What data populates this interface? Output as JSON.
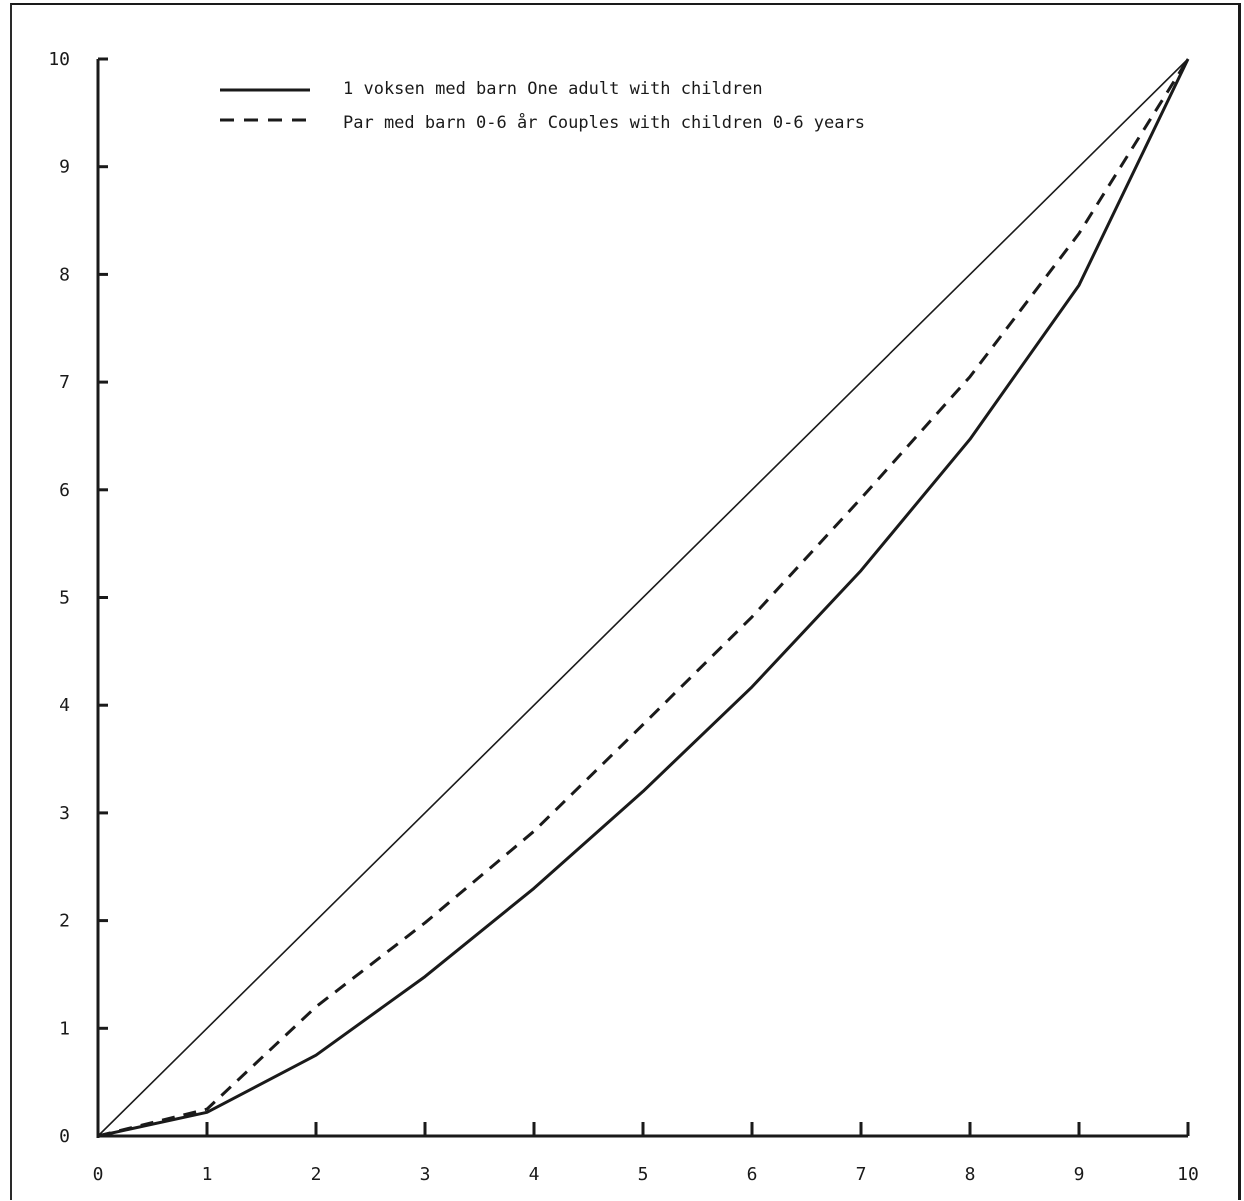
{
  "chart_data": {
    "type": "line",
    "title": "",
    "xlabel": "",
    "ylabel": "",
    "xlim": [
      0,
      10
    ],
    "ylim": [
      0,
      10
    ],
    "x_ticks": [
      "0",
      "1",
      "2",
      "3",
      "4",
      "5",
      "6",
      "7",
      "8",
      "9",
      "10"
    ],
    "y_ticks": [
      "0",
      "1",
      "2",
      "3",
      "4",
      "5",
      "6",
      "7",
      "8",
      "9",
      "10"
    ],
    "grid": false,
    "legend_position": "top",
    "diagonal": {
      "x": [
        0,
        10
      ],
      "y": [
        0,
        10
      ]
    },
    "series": [
      {
        "name": "1 voksen med barn  One adult with children",
        "style": "solid",
        "x": [
          0,
          1,
          2,
          3,
          4,
          5,
          6,
          7,
          8,
          9,
          10
        ],
        "y": [
          0,
          0.22,
          0.75,
          1.48,
          2.3,
          3.2,
          4.17,
          5.25,
          6.47,
          7.9,
          10
        ]
      },
      {
        "name": "Par med barn 0-6 år  Couples with children 0-6 years",
        "style": "dashed",
        "x": [
          0,
          1,
          2,
          3,
          4,
          5,
          6,
          7,
          8,
          9,
          10
        ],
        "y": [
          0,
          0.25,
          1.2,
          1.98,
          2.83,
          3.82,
          4.82,
          5.92,
          7.05,
          8.38,
          10
        ]
      }
    ]
  }
}
